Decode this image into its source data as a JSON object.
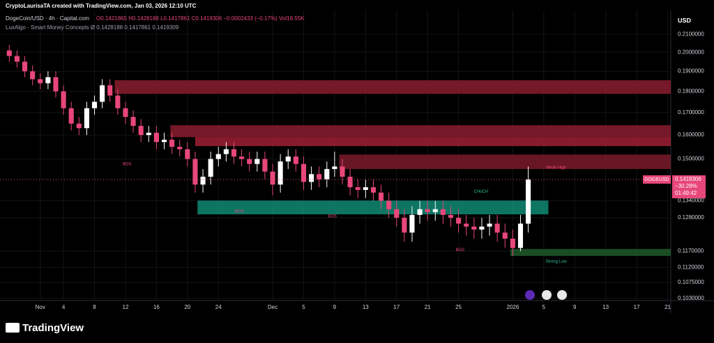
{
  "header": {
    "credit": "CryptoLaurisaTA created with TradingView.com, Jan 03, 2026 12:10 UTC",
    "symbol": "DogeCoin/USD · 4h · Capital.com",
    "ohlc": "O0.1421865 H0.1428188 L0.1417861 C0.1419306 −0.0002433 (−0.17%) Vol18.55K",
    "indicator": "LuxAlgo - Smart Money Concepts Ø 0.1428188 0.1417861 0.1419309",
    "currency": "USD",
    "brand": "TradingView"
  },
  "chart_data": {
    "type": "candlestick",
    "log_scale": true,
    "up_color": "#ffffff",
    "down_color": "#e8477a",
    "x": [
      -3,
      -2,
      -1,
      0,
      1,
      2,
      3,
      4,
      5,
      6,
      7,
      8,
      9,
      10,
      11,
      12,
      13,
      14,
      15,
      16,
      17,
      18,
      19,
      20,
      21,
      22,
      23,
      24,
      25,
      26,
      27,
      28,
      29,
      30,
      31,
      32,
      33,
      34,
      35,
      36,
      37,
      38,
      39,
      40,
      41,
      42,
      43,
      44,
      45,
      46,
      47,
      48,
      49,
      50,
      51,
      52,
      53,
      54,
      55,
      56,
      57,
      58,
      59,
      60,
      61,
      62,
      63,
      64
    ],
    "open": [
      0.201,
      0.198,
      0.195,
      0.19,
      0.186,
      0.184,
      0.187,
      0.18,
      0.172,
      0.165,
      0.163,
      0.172,
      0.175,
      0.183,
      0.178,
      0.172,
      0.168,
      0.164,
      0.16,
      0.161,
      0.157,
      0.158,
      0.155,
      0.154,
      0.15,
      0.14,
      0.143,
      0.15,
      0.152,
      0.154,
      0.151,
      0.15,
      0.148,
      0.15,
      0.145,
      0.14,
      0.149,
      0.151,
      0.148,
      0.141,
      0.144,
      0.142,
      0.146,
      0.147,
      0.143,
      0.139,
      0.138,
      0.139,
      0.137,
      0.134,
      0.131,
      0.128,
      0.123,
      0.129,
      0.131,
      0.13,
      0.131,
      0.129,
      0.128,
      0.126,
      0.125,
      0.124,
      0.125,
      0.126,
      0.123,
      0.121,
      0.118,
      0.126
    ],
    "high": [
      0.204,
      0.201,
      0.198,
      0.193,
      0.189,
      0.19,
      0.19,
      0.183,
      0.175,
      0.168,
      0.175,
      0.178,
      0.186,
      0.186,
      0.181,
      0.175,
      0.171,
      0.167,
      0.164,
      0.164,
      0.161,
      0.161,
      0.158,
      0.157,
      0.153,
      0.146,
      0.153,
      0.155,
      0.157,
      0.157,
      0.154,
      0.153,
      0.153,
      0.153,
      0.148,
      0.152,
      0.154,
      0.154,
      0.151,
      0.147,
      0.147,
      0.149,
      0.153,
      0.15,
      0.146,
      0.142,
      0.142,
      0.142,
      0.14,
      0.137,
      0.134,
      0.131,
      0.132,
      0.134,
      0.134,
      0.134,
      0.134,
      0.132,
      0.131,
      0.129,
      0.128,
      0.128,
      0.129,
      0.129,
      0.126,
      0.124,
      0.129,
      0.147
    ],
    "low": [
      0.195,
      0.192,
      0.187,
      0.183,
      0.181,
      0.181,
      0.177,
      0.169,
      0.162,
      0.16,
      0.16,
      0.169,
      0.172,
      0.175,
      0.169,
      0.165,
      0.161,
      0.157,
      0.157,
      0.154,
      0.154,
      0.152,
      0.151,
      0.147,
      0.137,
      0.137,
      0.14,
      0.147,
      0.149,
      0.148,
      0.147,
      0.145,
      0.145,
      0.142,
      0.136,
      0.137,
      0.146,
      0.145,
      0.138,
      0.138,
      0.139,
      0.139,
      0.143,
      0.14,
      0.136,
      0.135,
      0.135,
      0.134,
      0.131,
      0.128,
      0.125,
      0.12,
      0.12,
      0.126,
      0.127,
      0.127,
      0.126,
      0.125,
      0.123,
      0.122,
      0.121,
      0.121,
      0.122,
      0.12,
      0.118,
      0.1155,
      0.117,
      0.123
    ],
    "close": [
      0.198,
      0.195,
      0.19,
      0.186,
      0.184,
      0.187,
      0.18,
      0.172,
      0.165,
      0.163,
      0.172,
      0.175,
      0.183,
      0.178,
      0.172,
      0.168,
      0.164,
      0.16,
      0.161,
      0.157,
      0.158,
      0.155,
      0.154,
      0.15,
      0.14,
      0.143,
      0.15,
      0.152,
      0.154,
      0.151,
      0.15,
      0.148,
      0.15,
      0.145,
      0.14,
      0.149,
      0.151,
      0.148,
      0.141,
      0.144,
      0.142,
      0.146,
      0.147,
      0.143,
      0.139,
      0.138,
      0.139,
      0.137,
      0.134,
      0.131,
      0.128,
      0.123,
      0.129,
      0.131,
      0.13,
      0.131,
      0.129,
      0.128,
      0.126,
      0.125,
      0.124,
      0.125,
      0.126,
      0.123,
      0.121,
      0.118,
      0.126,
      0.1419306
    ],
    "xlim": [
      -4.2,
      82.4
    ],
    "xticks": [
      {
        "value": 1,
        "label": "Nov"
      },
      {
        "value": 4,
        "label": "4"
      },
      {
        "value": 8,
        "label": "8"
      },
      {
        "value": 12,
        "label": "12"
      },
      {
        "value": 16,
        "label": "16"
      },
      {
        "value": 20,
        "label": "20"
      },
      {
        "value": 24,
        "label": "24"
      },
      {
        "value": 31,
        "label": "Dec"
      },
      {
        "value": 35,
        "label": "5"
      },
      {
        "value": 39,
        "label": "9"
      },
      {
        "value": 43,
        "label": "13"
      },
      {
        "value": 47,
        "label": "17"
      },
      {
        "value": 51,
        "label": "21"
      },
      {
        "value": 55,
        "label": "25"
      },
      {
        "value": 62,
        "label": "2026"
      },
      {
        "value": 66,
        "label": "5"
      },
      {
        "value": 70,
        "label": "9"
      },
      {
        "value": 74,
        "label": "13"
      },
      {
        "value": 78,
        "label": "17"
      },
      {
        "value": 82,
        "label": "21"
      }
    ],
    "ylim": [
      0.1024,
      0.2239
    ],
    "yticks": [
      {
        "value": 0.21,
        "label": "0.2100000"
      },
      {
        "value": 0.2,
        "label": "0.2000000"
      },
      {
        "value": 0.19,
        "label": "0.1900000"
      },
      {
        "value": 0.18,
        "label": "0.1800000"
      },
      {
        "value": 0.17,
        "label": "0.1700000"
      },
      {
        "value": 0.16,
        "label": "0.1600000"
      },
      {
        "value": 0.15,
        "label": "0.1500000"
      },
      {
        "value": 0.134,
        "label": "0.1340000"
      },
      {
        "value": 0.128,
        "label": "0.1280000"
      },
      {
        "value": 0.117,
        "label": "0.1170000"
      },
      {
        "value": 0.112,
        "label": "0.1120000"
      },
      {
        "value": 0.1075,
        "label": "0.1075000"
      },
      {
        "value": 0.103,
        "label": "0.1030000"
      }
    ],
    "grid": true,
    "zones": [
      {
        "from": 10.6,
        "to": 82.4,
        "low": 0.1788,
        "high": 0.1855,
        "color": "#8a1c2e"
      },
      {
        "from": 17.8,
        "to": 82.4,
        "low": 0.1591,
        "high": 0.1643,
        "color": "#8a1c2e"
      },
      {
        "from": 21,
        "to": 82.4,
        "low": 0.1553,
        "high": 0.1591,
        "color": "#a01f35"
      },
      {
        "from": 39.6,
        "to": 82.4,
        "low": 0.146,
        "high": 0.1518,
        "color": "#7a1a2a"
      },
      {
        "from": 21.3,
        "to": 66.6,
        "low": 0.1292,
        "high": 0.1341,
        "color": "#0f8a73"
      },
      {
        "from": 61.7,
        "to": 82.4,
        "low": 0.1155,
        "high": 0.1177,
        "color": "#1f5a2a"
      }
    ],
    "annotations": [
      {
        "text": "BOS",
        "x": 12.2,
        "y": 0.1479
      },
      {
        "text": "BOS",
        "x": 26.7,
        "y": 0.1302
      },
      {
        "text": "BOS",
        "x": 38.7,
        "y": 0.1285
      },
      {
        "text": "BOS",
        "x": 55.2,
        "y": 0.1173
      },
      {
        "text": "CHoCH",
        "x": 57.9,
        "y": 0.1374
      },
      {
        "text": "Strong Low",
        "x": 67.6,
        "y": 0.1138
      },
      {
        "text": "Weak High",
        "x": 67.6,
        "y": 0.1466
      }
    ],
    "last": {
      "symbol": "DOGEUSD",
      "value": 0.1419306,
      "change": "−30.28%",
      "countdown": "01:49:42"
    }
  }
}
